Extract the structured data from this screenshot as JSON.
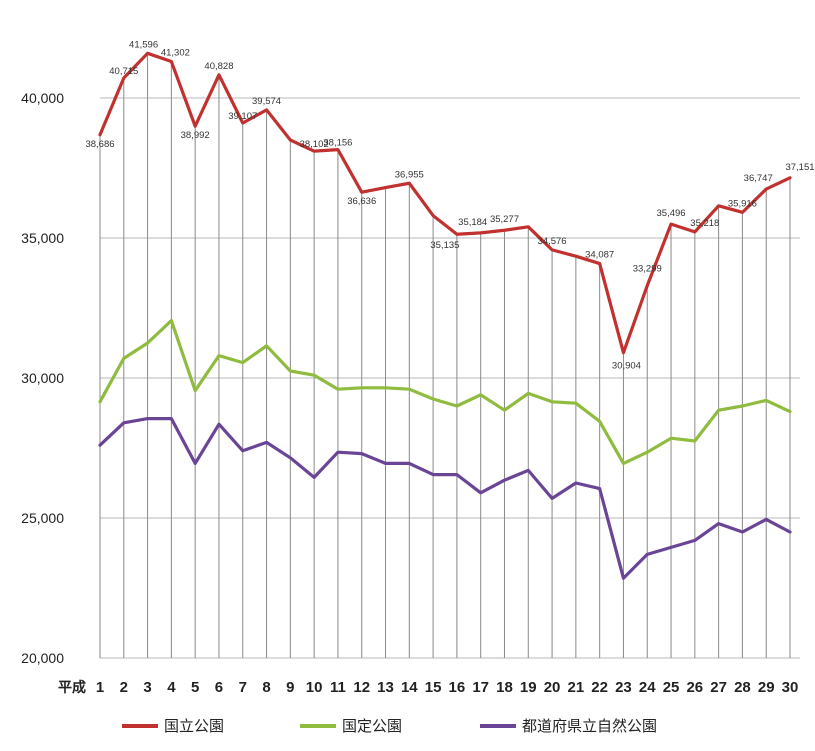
{
  "chart_data": {
    "type": "line",
    "x_prefix": "平成",
    "categories": [
      "1",
      "2",
      "3",
      "4",
      "5",
      "6",
      "7",
      "8",
      "9",
      "10",
      "11",
      "12",
      "13",
      "14",
      "15",
      "16",
      "17",
      "18",
      "19",
      "20",
      "21",
      "22",
      "23",
      "24",
      "25",
      "26",
      "27",
      "28",
      "29",
      "30"
    ],
    "ylim": [
      20000,
      42000
    ],
    "yticks": [
      20000,
      25000,
      30000,
      35000,
      40000
    ],
    "ytick_labels": [
      "20,000",
      "25,000",
      "30,000",
      "35,000",
      "40,000"
    ],
    "grid": "horizontal and vertical",
    "legend_position": "bottom",
    "series": [
      {
        "name": "国立公園",
        "color": "#c0312f",
        "values": [
          38686,
          40715,
          41596,
          41302,
          38992,
          40828,
          39107,
          39574,
          38500,
          38102,
          38156,
          36636,
          36800,
          36955,
          35800,
          35135,
          35184,
          35277,
          35400,
          34576,
          34350,
          34087,
          30904,
          33299,
          35496,
          35218,
          36150,
          35916,
          36747,
          37151
        ],
        "labels": [
          "38,686",
          "40,715",
          "41,596",
          "41,302",
          "38,992",
          "40,828",
          "39,107",
          "39,574",
          "",
          "38,102",
          "38,156",
          "36,636",
          "",
          "36,955",
          "",
          "35,135",
          "35,184",
          "35,277",
          "",
          "34,576",
          "",
          "34,087",
          "30,904",
          "33,299",
          "35,496",
          "35,218",
          "",
          "35,916",
          "36,747",
          "37,151"
        ]
      },
      {
        "name": "国定公園",
        "color": "#8fbb3e",
        "values": [
          29150,
          30700,
          31250,
          32050,
          29550,
          30800,
          30550,
          31150,
          30250,
          30100,
          29600,
          29650,
          29650,
          29600,
          29250,
          29000,
          29400,
          28850,
          29450,
          29150,
          29100,
          28450,
          26950,
          27350,
          27850,
          27750,
          28850,
          29000,
          29200,
          28800
        ]
      },
      {
        "name": "都道府県立自然公園",
        "color": "#6a4596",
        "values": [
          27600,
          28400,
          28550,
          28550,
          26950,
          28350,
          27400,
          27700,
          27150,
          26450,
          27350,
          27300,
          26950,
          26950,
          26550,
          26550,
          25900,
          26350,
          26700,
          25700,
          26250,
          26050,
          22850,
          23700,
          23950,
          24200,
          24800,
          24500,
          24950,
          24500
        ]
      }
    ]
  }
}
